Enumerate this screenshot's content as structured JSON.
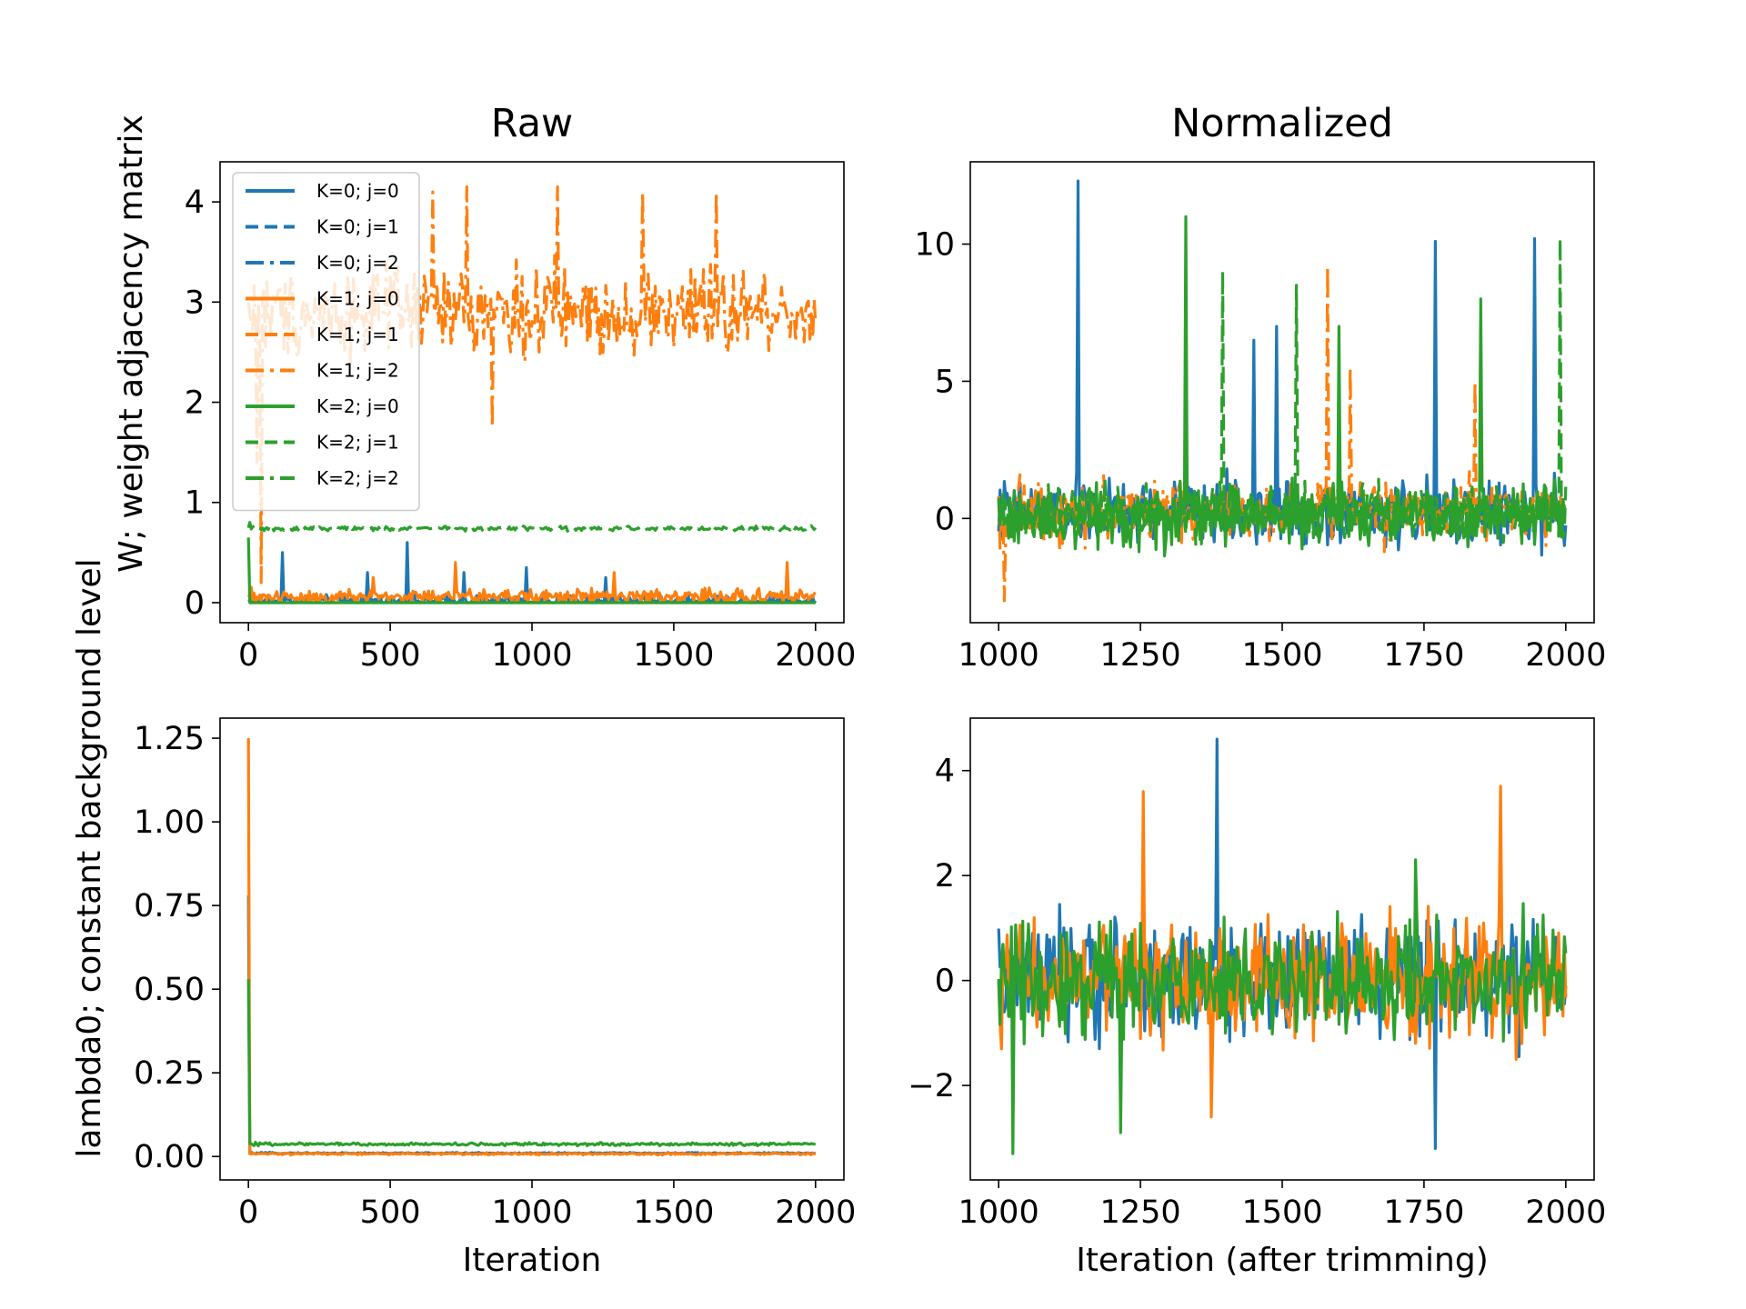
{
  "chart_data": [
    {
      "type": "line",
      "panel": "top-left",
      "title": "Raw",
      "xlabel": "",
      "ylabel": "W; weight adjacency matrix",
      "xlim": [
        -100,
        2100
      ],
      "ylim": [
        -0.2,
        4.4
      ],
      "x_ticks": [
        0,
        500,
        1000,
        1500,
        2000
      ],
      "x_tick_labels": [
        "0",
        "500",
        "1000",
        "1500",
        "2000"
      ],
      "y_ticks": [
        0,
        1,
        2,
        3,
        4
      ],
      "y_tick_labels": [
        "0",
        "1",
        "2",
        "3",
        "4"
      ],
      "legend": {
        "placement": "upper-left",
        "entries": [
          {
            "label": "K=0; j=0",
            "color": "#1f77b4",
            "dash": "solid"
          },
          {
            "label": "K=0; j=1",
            "color": "#1f77b4",
            "dash": "dashed"
          },
          {
            "label": "K=0; j=2",
            "color": "#1f77b4",
            "dash": "dashdot"
          },
          {
            "label": "K=1; j=0",
            "color": "#ff7f0e",
            "dash": "solid"
          },
          {
            "label": "K=1; j=1",
            "color": "#ff7f0e",
            "dash": "dashed"
          },
          {
            "label": "K=1; j=2",
            "color": "#ff7f0e",
            "dash": "dashdot"
          },
          {
            "label": "K=2; j=0",
            "color": "#2ca02c",
            "dash": "solid"
          },
          {
            "label": "K=2; j=1",
            "color": "#2ca02c",
            "dash": "dashed"
          },
          {
            "label": "K=2; j=2",
            "color": "#2ca02c",
            "dash": "dashdot"
          }
        ]
      },
      "series": [
        {
          "legend_ref": "K=0; j=0",
          "color": "#1f77b4",
          "dash": "solid",
          "x_range": [
            0,
            2000
          ],
          "base": 0.02,
          "noise": 0.05,
          "spikes": [
            {
              "x": 120,
              "y": 0.5
            },
            {
              "x": 420,
              "y": 0.3
            },
            {
              "x": 560,
              "y": 0.6
            },
            {
              "x": 760,
              "y": 0.3
            },
            {
              "x": 980,
              "y": 0.35
            },
            {
              "x": 1260,
              "y": 0.25
            }
          ]
        },
        {
          "legend_ref": "K=1; j=2",
          "color": "#ff7f0e",
          "dash": "dashdot",
          "x_range": [
            0,
            2000
          ],
          "base": 2.9,
          "noise": 0.4,
          "spikes": [
            {
              "x": 30,
              "y": 1.4
            },
            {
              "x": 45,
              "y": 0.2
            },
            {
              "x": 650,
              "y": 4.1
            },
            {
              "x": 770,
              "y": 4.15
            },
            {
              "x": 860,
              "y": 1.75
            },
            {
              "x": 1090,
              "y": 4.15
            },
            {
              "x": 1390,
              "y": 4.1
            },
            {
              "x": 1650,
              "y": 4.1
            }
          ]
        },
        {
          "legend_ref": "K=1; j=0",
          "color": "#ff7f0e",
          "dash": "solid",
          "x_range": [
            0,
            2000
          ],
          "base": 0.06,
          "noise": 0.07,
          "spikes": [
            {
              "x": 440,
              "y": 0.25
            },
            {
              "x": 730,
              "y": 0.4
            },
            {
              "x": 1290,
              "y": 0.3
            },
            {
              "x": 1900,
              "y": 0.4
            }
          ]
        },
        {
          "legend_ref": "K=2; j=1",
          "color": "#2ca02c",
          "dash": "dashed",
          "x_range": [
            0,
            2000
          ],
          "base": 0.74,
          "noise": 0.02,
          "spikes": [
            {
              "x": 5,
              "y": 0.8
            }
          ]
        },
        {
          "legend_ref": "K=2; j=0",
          "color": "#2ca02c",
          "dash": "solid",
          "x_range": [
            0,
            2000
          ],
          "base": 0.0,
          "noise": 0.0,
          "spikes": [
            {
              "x": 0,
              "y": 0.65
            }
          ]
        }
      ]
    },
    {
      "type": "line",
      "panel": "top-right",
      "title": "Normalized",
      "xlabel": "",
      "ylabel": "",
      "xlim": [
        950,
        2050
      ],
      "ylim": [
        -3.8,
        13
      ],
      "x_ticks": [
        1000,
        1250,
        1500,
        1750,
        2000
      ],
      "x_tick_labels": [
        "1000",
        "1250",
        "1500",
        "1750",
        "2000"
      ],
      "y_ticks": [
        0,
        5,
        10
      ],
      "y_tick_labels": [
        "0",
        "5",
        "10"
      ],
      "series": [
        {
          "color": "#1f77b4",
          "dash": "solid",
          "x_range": [
            1000,
            2000
          ],
          "base": 0.2,
          "noise": 1.1,
          "spikes": [
            {
              "x": 1140,
              "y": 12.3
            },
            {
              "x": 1450,
              "y": 6.5
            },
            {
              "x": 1490,
              "y": 7.0
            },
            {
              "x": 1770,
              "y": 10.1
            },
            {
              "x": 1945,
              "y": 10.2
            }
          ]
        },
        {
          "color": "#ff7f0e",
          "dash": "dashdot",
          "x_range": [
            1000,
            2000
          ],
          "base": 0.3,
          "noise": 1.0,
          "spikes": [
            {
              "x": 1010,
              "y": -3.0
            },
            {
              "x": 1580,
              "y": 9.2
            },
            {
              "x": 1620,
              "y": 5.5
            },
            {
              "x": 1840,
              "y": 5.0
            }
          ]
        },
        {
          "color": "#2ca02c",
          "dash": "solid",
          "x_range": [
            1000,
            2000
          ],
          "base": 0.1,
          "noise": 1.0,
          "spikes": [
            {
              "x": 1330,
              "y": 11.0
            },
            {
              "x": 1600,
              "y": 7.0
            },
            {
              "x": 1850,
              "y": 8.0
            }
          ]
        },
        {
          "color": "#2ca02c",
          "dash": "dashed",
          "x_range": [
            1000,
            2000
          ],
          "base": 0.2,
          "noise": 0.9,
          "spikes": [
            {
              "x": 1395,
              "y": 9.0
            },
            {
              "x": 1525,
              "y": 8.5
            },
            {
              "x": 1990,
              "y": 10.2
            }
          ]
        }
      ]
    },
    {
      "type": "line",
      "panel": "bottom-left",
      "title": "",
      "xlabel": "Iteration",
      "ylabel": "lambda0; constant background level",
      "xlim": [
        -100,
        2100
      ],
      "ylim": [
        -0.07,
        1.31
      ],
      "x_ticks": [
        0,
        500,
        1000,
        1500,
        2000
      ],
      "x_tick_labels": [
        "0",
        "500",
        "1000",
        "1500",
        "2000"
      ],
      "y_ticks": [
        0,
        0.25,
        0.5,
        0.75,
        1.0,
        1.25
      ],
      "y_tick_labels": [
        "0.00",
        "0.25",
        "0.50",
        "0.75",
        "1.00",
        "1.25"
      ],
      "series": [
        {
          "color": "#1f77b4",
          "dash": "solid",
          "x_range": [
            0,
            2000
          ],
          "base": 0.01,
          "noise": 0.002,
          "spikes": [
            {
              "x": 0,
              "y": 0.78
            }
          ]
        },
        {
          "color": "#ff7f0e",
          "dash": "solid",
          "x_range": [
            0,
            2000
          ],
          "base": 0.008,
          "noise": 0.003,
          "spikes": [
            {
              "x": 0,
              "y": 1.25
            }
          ]
        },
        {
          "color": "#2ca02c",
          "dash": "solid",
          "x_range": [
            0,
            2000
          ],
          "base": 0.037,
          "noise": 0.004,
          "spikes": [
            {
              "x": 0,
              "y": 0.53
            }
          ]
        }
      ]
    },
    {
      "type": "line",
      "panel": "bottom-right",
      "title": "",
      "xlabel": "Iteration (after trimming)",
      "ylabel": "",
      "xlim": [
        950,
        2050
      ],
      "ylim": [
        -3.8,
        5.0
      ],
      "x_ticks": [
        1000,
        1250,
        1500,
        1750,
        2000
      ],
      "x_tick_labels": [
        "1000",
        "1250",
        "1500",
        "1750",
        "2000"
      ],
      "y_ticks": [
        -2,
        0,
        2,
        4
      ],
      "y_tick_labels": [
        "−2",
        "0",
        "2",
        "4"
      ],
      "series": [
        {
          "color": "#1f77b4",
          "dash": "solid",
          "x_range": [
            1000,
            2000
          ],
          "base": 0.0,
          "noise": 1.0,
          "spikes": [
            {
              "x": 1385,
              "y": 4.6
            },
            {
              "x": 1770,
              "y": -3.2
            }
          ]
        },
        {
          "color": "#ff7f0e",
          "dash": "solid",
          "x_range": [
            1000,
            2000
          ],
          "base": 0.0,
          "noise": 1.0,
          "spikes": [
            {
              "x": 1255,
              "y": 3.6
            },
            {
              "x": 1885,
              "y": 3.7
            },
            {
              "x": 1375,
              "y": -2.6
            }
          ]
        },
        {
          "color": "#2ca02c",
          "dash": "solid",
          "x_range": [
            1000,
            2000
          ],
          "base": 0.0,
          "noise": 1.0,
          "spikes": [
            {
              "x": 1025,
              "y": -3.3
            },
            {
              "x": 1215,
              "y": -2.9
            },
            {
              "x": 1735,
              "y": 2.3
            }
          ]
        }
      ]
    }
  ]
}
